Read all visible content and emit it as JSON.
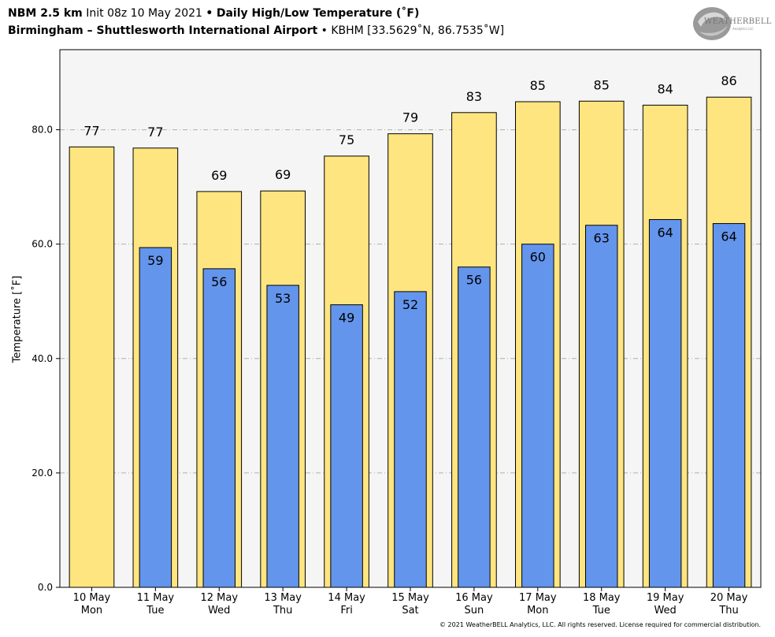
{
  "header": {
    "line1_bold_a": "NBM 2.5 km",
    "line1_init": "Init 08z 10 May 2021",
    "line1_sep": "•",
    "line1_bold_b": "Daily High/Low Temperature (˚F)",
    "line2_bold": "Birmingham – Shuttlesworth International Airport",
    "line2_sep": "•",
    "line2_station": "KBHM [33.5629˚N, 86.7535˚W]"
  },
  "logo": {
    "text": "WEATHERBELL",
    "sub": "Analytics LLC"
  },
  "copyright": "© 2021 WeatherBELL Analytics, LLC. All rights reserved. License required for commercial distribution.",
  "colors": {
    "high": "#FFE57F",
    "low": "#6495ED",
    "plot_bg": "#F5F5F5",
    "grid": "#B0B0B0"
  },
  "chart_data": {
    "type": "bar",
    "title": "Daily High/Low Temperature (˚F)",
    "ylabel": "Temperature [˚F]",
    "ylim": [
      0,
      94
    ],
    "yticks": [
      0.0,
      20.0,
      40.0,
      60.0,
      80.0
    ],
    "ytick_labels": [
      "0.0",
      "20.0",
      "40.0",
      "60.0",
      "80.0"
    ],
    "grid": true,
    "categories": [
      {
        "date": "10 May",
        "day": "Mon"
      },
      {
        "date": "11 May",
        "day": "Tue"
      },
      {
        "date": "12 May",
        "day": "Wed"
      },
      {
        "date": "13 May",
        "day": "Thu"
      },
      {
        "date": "14 May",
        "day": "Fri"
      },
      {
        "date": "15 May",
        "day": "Sat"
      },
      {
        "date": "16 May",
        "day": "Sun"
      },
      {
        "date": "17 May",
        "day": "Mon"
      },
      {
        "date": "18 May",
        "day": "Tue"
      },
      {
        "date": "19 May",
        "day": "Wed"
      },
      {
        "date": "20 May",
        "day": "Thu"
      }
    ],
    "series": [
      {
        "values": [
          77.0,
          76.8,
          69.2,
          69.3,
          75.4,
          79.3,
          83.0,
          84.9,
          85.0,
          84.3,
          85.7
        ],
        "labels": [
          "77",
          "77",
          "69",
          "69",
          "75",
          "79",
          "83",
          "85",
          "85",
          "84",
          "86"
        ]
      },
      {
        "values": [
          null,
          59.4,
          55.7,
          52.8,
          49.4,
          51.7,
          56.0,
          60.0,
          63.3,
          64.3,
          63.6
        ],
        "labels": [
          null,
          "59",
          "56",
          "53",
          "49",
          "52",
          "56",
          "60",
          "63",
          "64",
          "64"
        ]
      }
    ]
  }
}
